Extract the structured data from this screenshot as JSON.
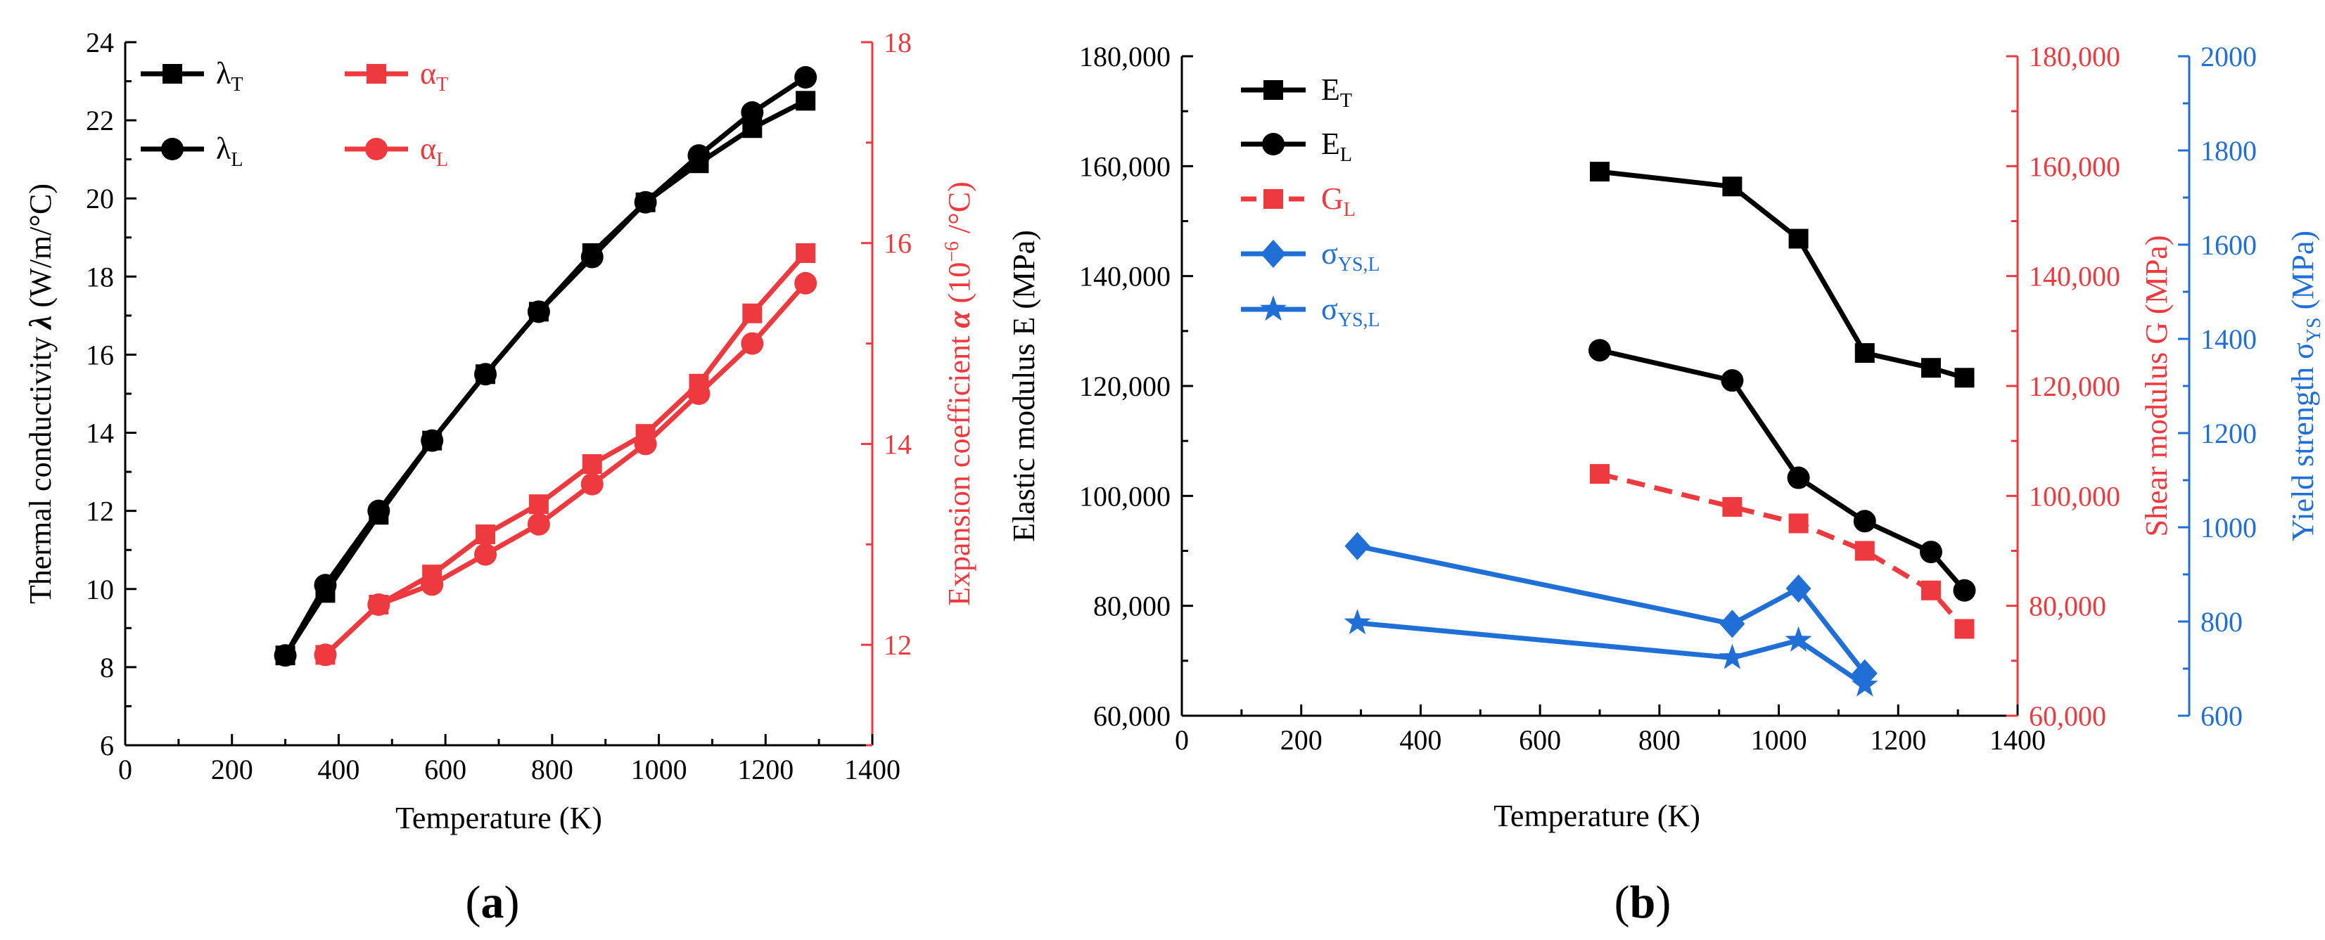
{
  "colors": {
    "black": "#000000",
    "red": "#ee3a3f",
    "blue": "#1f6fd6"
  },
  "panels": {
    "a": "a",
    "b": "b"
  },
  "chart_data": [
    {
      "type": "line",
      "panel": "a",
      "xlabel": "Temperature  (K)",
      "xlim": [
        0,
        1400
      ],
      "xticks": [
        "0",
        "200",
        "400",
        "600",
        "800",
        "1000",
        "1200",
        "1400"
      ],
      "ylabel": {
        "text": "Thermal conductivity ",
        "italic": "λ",
        "unit": " (W/m/°C)"
      },
      "ylim": [
        6,
        24
      ],
      "yticks": [
        "6",
        "8",
        "10",
        "12",
        "14",
        "16",
        "18",
        "20",
        "22",
        "24"
      ],
      "y2label": {
        "text": "Expansion coefficient ",
        "italic": "α",
        "unit_pre": " (10",
        "unit_sup": "−6",
        "unit_post": " /°C)"
      },
      "y2lim": [
        11,
        18
      ],
      "y2ticks": [
        "12",
        "14",
        "16",
        "18"
      ],
      "legend": [
        {
          "base": "λ",
          "sub": "T"
        },
        {
          "base": "λ",
          "sub": "L"
        },
        {
          "base": "α",
          "sub": "T"
        },
        {
          "base": "α",
          "sub": "L"
        }
      ],
      "series": [
        {
          "name": "λT",
          "axis": "left",
          "color": "black",
          "marker": "square",
          "x": [
            300,
            375,
            475,
            575,
            675,
            775,
            875,
            975,
            1075,
            1175,
            1275
          ],
          "y": [
            8.3,
            9.9,
            11.9,
            13.8,
            15.5,
            17.1,
            18.6,
            19.9,
            20.9,
            21.8,
            22.5
          ]
        },
        {
          "name": "λL",
          "axis": "left",
          "color": "black",
          "marker": "circle",
          "x": [
            300,
            375,
            475,
            575,
            675,
            775,
            875,
            975,
            1075,
            1175,
            1275
          ],
          "y": [
            8.3,
            10.1,
            12.0,
            13.8,
            15.5,
            17.1,
            18.5,
            19.9,
            21.1,
            22.2,
            23.1
          ]
        },
        {
          "name": "αT",
          "axis": "right",
          "color": "red",
          "marker": "square",
          "x": [
            375,
            475,
            575,
            675,
            775,
            875,
            975,
            1075,
            1175,
            1275
          ],
          "y": [
            11.9,
            12.4,
            12.7,
            13.1,
            13.4,
            13.8,
            14.1,
            14.6,
            15.3,
            15.9
          ]
        },
        {
          "name": "αL",
          "axis": "right",
          "color": "red",
          "marker": "circle",
          "x": [
            375,
            475,
            575,
            675,
            775,
            875,
            975,
            1075,
            1175,
            1275
          ],
          "y": [
            11.9,
            12.4,
            12.6,
            12.9,
            13.2,
            13.6,
            14.0,
            14.5,
            15.0,
            15.6
          ]
        }
      ]
    },
    {
      "type": "line",
      "panel": "b",
      "xlabel": "Temperature (K)",
      "xlim": [
        0,
        1400
      ],
      "xticks": [
        "0",
        "200",
        "400",
        "600",
        "800",
        "1000",
        "1200",
        "1400"
      ],
      "ylabel": "Elastic modulus E (MPa)",
      "ylim": [
        60000,
        180000
      ],
      "yticks": [
        "60,000",
        "80,000",
        "100,000",
        "120,000",
        "140,000",
        "160,000",
        "180,000"
      ],
      "y2label": "Shear modulus G (MPa)",
      "y2lim": [
        60000,
        180000
      ],
      "y2ticks": [
        "60,000",
        "80,000",
        "100,000",
        "120,000",
        "140,000",
        "160,000",
        "180,000"
      ],
      "y3label": {
        "text": "Yield strength σ",
        "sub": "YS",
        "unit": "  (MPa)"
      },
      "y3lim": [
        600,
        2000
      ],
      "y3ticks": [
        "600",
        "800",
        "1000",
        "1200",
        "1400",
        "1600",
        "1800",
        "2000"
      ],
      "legend": [
        {
          "base": "E",
          "sub": "T"
        },
        {
          "base": "E",
          "sub": "L"
        },
        {
          "base": "G",
          "sub": "L"
        },
        {
          "base": "σ",
          "sub": "YS,L"
        },
        {
          "base": "σ",
          "sub": "YS,L"
        }
      ],
      "series": [
        {
          "name": "ET",
          "axis": "left",
          "color": "black",
          "marker": "square",
          "dashed": false,
          "x": [
            700,
            922,
            1033,
            1144,
            1255,
            1311
          ],
          "y": [
            159000,
            156300,
            146800,
            126000,
            123300,
            121500
          ]
        },
        {
          "name": "EL",
          "axis": "left",
          "color": "black",
          "marker": "circle",
          "dashed": false,
          "x": [
            700,
            922,
            1033,
            1144,
            1255,
            1311
          ],
          "y": [
            126500,
            121000,
            103300,
            95400,
            89800,
            82800
          ]
        },
        {
          "name": "GL",
          "axis": "left",
          "color": "red",
          "marker": "square",
          "dashed": true,
          "x": [
            700,
            922,
            1033,
            1144,
            1255,
            1311
          ],
          "y": [
            104000,
            98000,
            95000,
            90000,
            82800,
            75800
          ]
        },
        {
          "name": "σYS,L",
          "axis": "third",
          "color": "blue",
          "marker": "diamond",
          "dashed": false,
          "x": [
            294,
            922,
            1033,
            1144
          ],
          "y": [
            960,
            795,
            870,
            690
          ]
        },
        {
          "name": "σYS,L",
          "axis": "third",
          "color": "blue",
          "marker": "star",
          "dashed": false,
          "x": [
            294,
            922,
            1033,
            1144
          ],
          "y": [
            797,
            723,
            760,
            665
          ]
        }
      ]
    }
  ]
}
